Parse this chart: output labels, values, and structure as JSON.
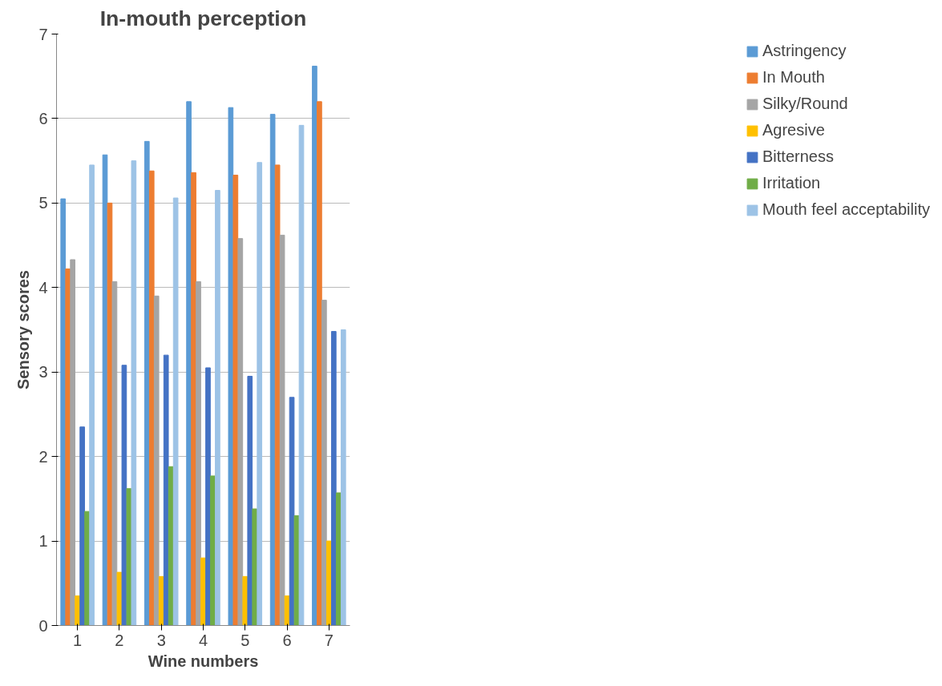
{
  "chart_data": {
    "type": "bar",
    "title": "In-mouth perception",
    "xlabel": "Wine numbers",
    "ylabel": "Sensory scores",
    "categories": [
      "1",
      "2",
      "3",
      "4",
      "5",
      "6",
      "7"
    ],
    "series": [
      {
        "name": "Astringency",
        "color": "#5b9bd5",
        "values": [
          5.05,
          5.57,
          5.73,
          6.2,
          6.13,
          6.05,
          6.62
        ]
      },
      {
        "name": "In Mouth",
        "color": "#ed7d31",
        "values": [
          4.22,
          5.0,
          5.38,
          5.36,
          5.33,
          5.45,
          6.2
        ]
      },
      {
        "name": "Silky/Round",
        "color": "#a5a5a5",
        "values": [
          4.33,
          4.07,
          3.9,
          4.07,
          4.58,
          4.62,
          3.85
        ]
      },
      {
        "name": "Agresive",
        "color": "#ffc000",
        "values": [
          0.35,
          0.63,
          0.58,
          0.8,
          0.58,
          0.35,
          1.0
        ]
      },
      {
        "name": "Bitterness",
        "color": "#4472c4",
        "values": [
          2.35,
          3.08,
          3.2,
          3.05,
          2.95,
          2.7,
          3.48
        ]
      },
      {
        "name": "Irritation",
        "color": "#70ad47",
        "values": [
          1.35,
          1.62,
          1.88,
          1.77,
          1.38,
          1.3,
          1.57
        ]
      },
      {
        "name": "Mouth feel acceptability",
        "color": "#9dc3e6",
        "values": [
          5.45,
          5.5,
          5.06,
          5.15,
          5.48,
          5.92,
          3.5
        ]
      }
    ],
    "ylim": [
      0,
      7
    ],
    "yticks": [
      0,
      1,
      2,
      3,
      4,
      5,
      6,
      7
    ],
    "grid": "y",
    "legend": "right"
  }
}
